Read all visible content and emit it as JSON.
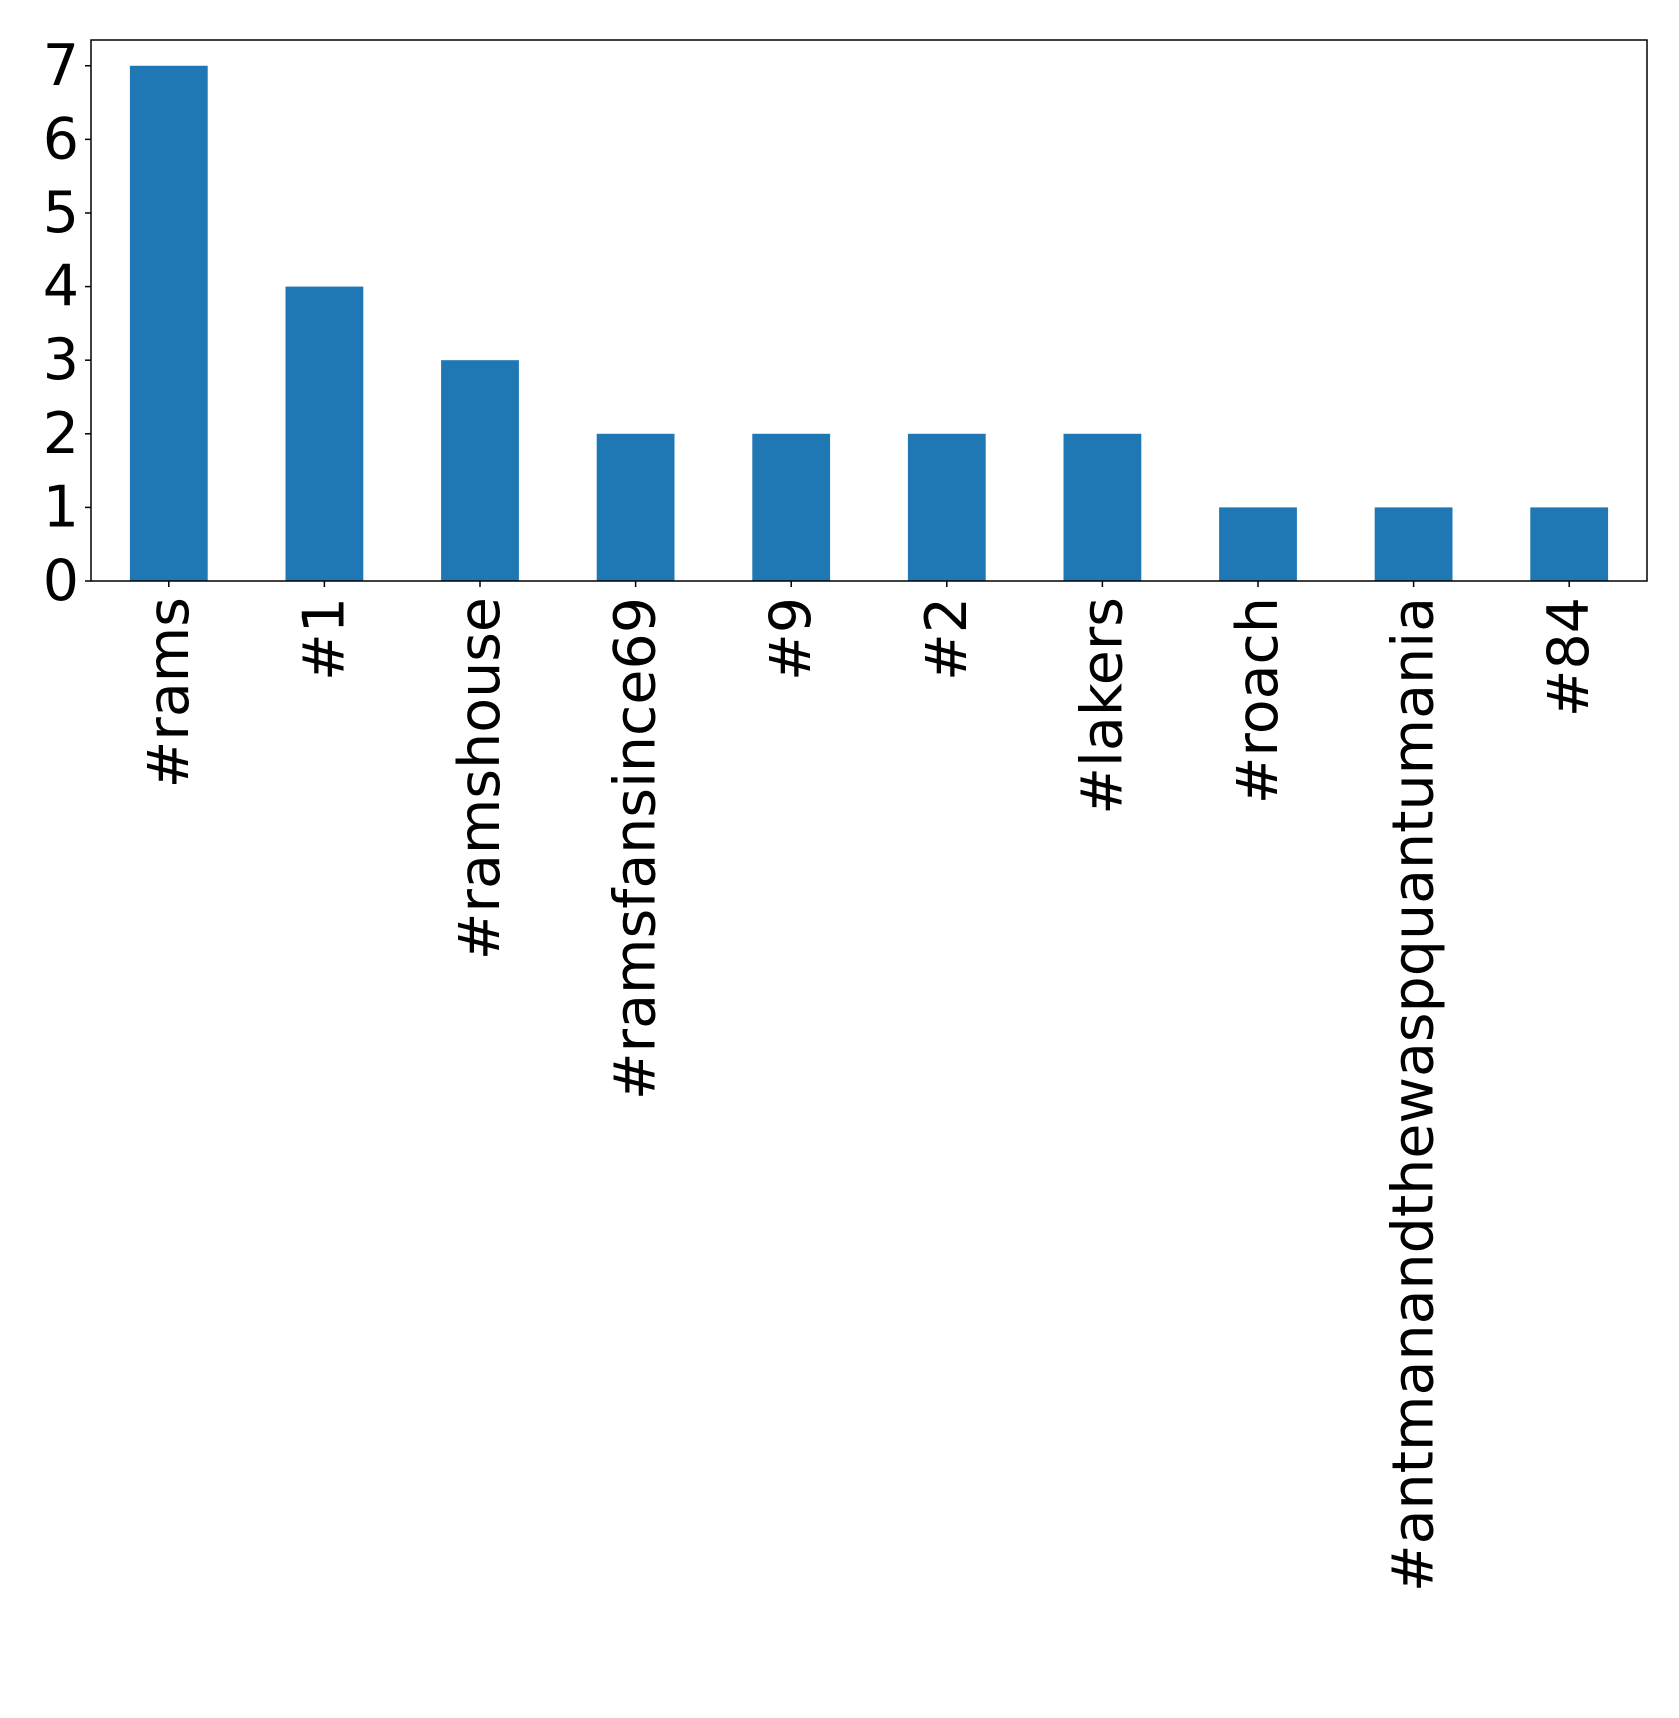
{
  "chart_data": {
    "type": "bar",
    "title": "",
    "xlabel": "",
    "ylabel": "",
    "categories": [
      "#rams",
      "#1",
      "#ramshouse",
      "#ramsfansince69",
      "#9",
      "#2",
      "#lakers",
      "#roach",
      "#antmanandthewaspquantumania",
      "#84"
    ],
    "values": [
      7,
      4,
      3,
      2,
      2,
      2,
      2,
      1,
      1,
      1
    ],
    "ylim": [
      0,
      7.35
    ],
    "yticks": [
      "0",
      "1",
      "2",
      "3",
      "4",
      "5",
      "6",
      "7"
    ],
    "grid": false,
    "legend": "none",
    "bar_color": "#1f77b4"
  }
}
